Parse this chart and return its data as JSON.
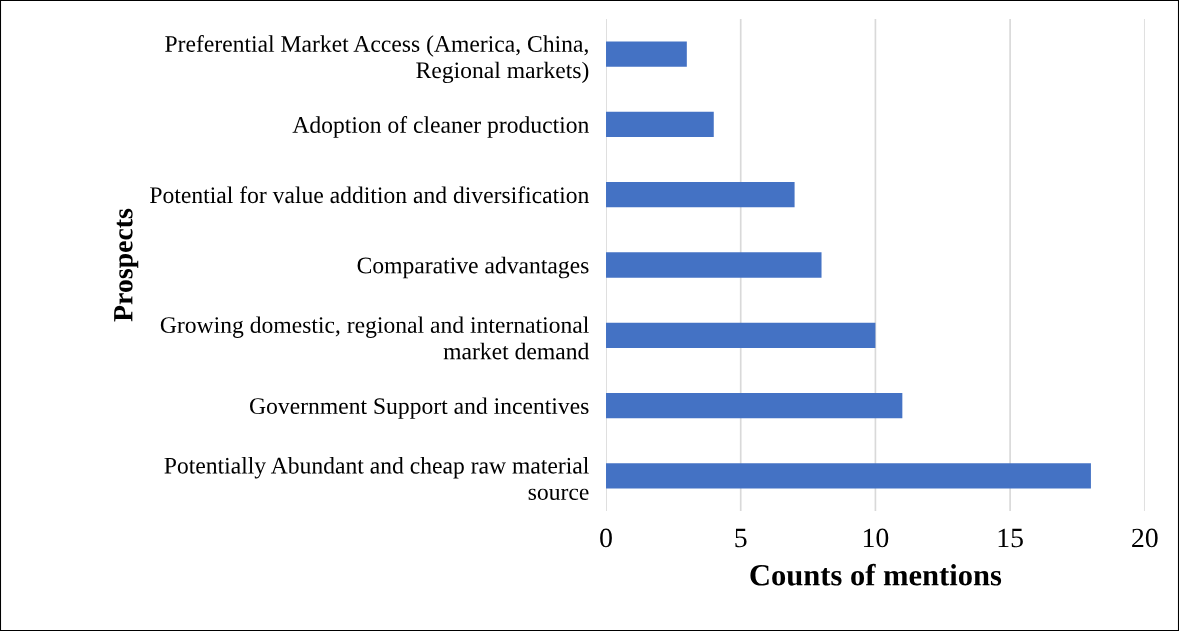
{
  "chart_data": {
    "type": "bar",
    "orientation": "horizontal",
    "categories": [
      "Preferential Market Access (America, China,\nRegional markets)",
      "Adoption of cleaner production",
      "Potential for value addition and diversification",
      "Comparative advantages",
      "Growing domestic, regional and international\nmarket demand",
      "Government Support and incentives",
      "Potentially Abundant and cheap raw material\nsource"
    ],
    "values": [
      3,
      4,
      7,
      8,
      10,
      11,
      18
    ],
    "color": "#4472c4",
    "xlim": [
      0,
      20
    ],
    "xticks": [
      0,
      5,
      10,
      15,
      20
    ],
    "xlabel": "Counts of mentions",
    "ylabel": "Prospects",
    "grid": "x",
    "legend": false
  }
}
